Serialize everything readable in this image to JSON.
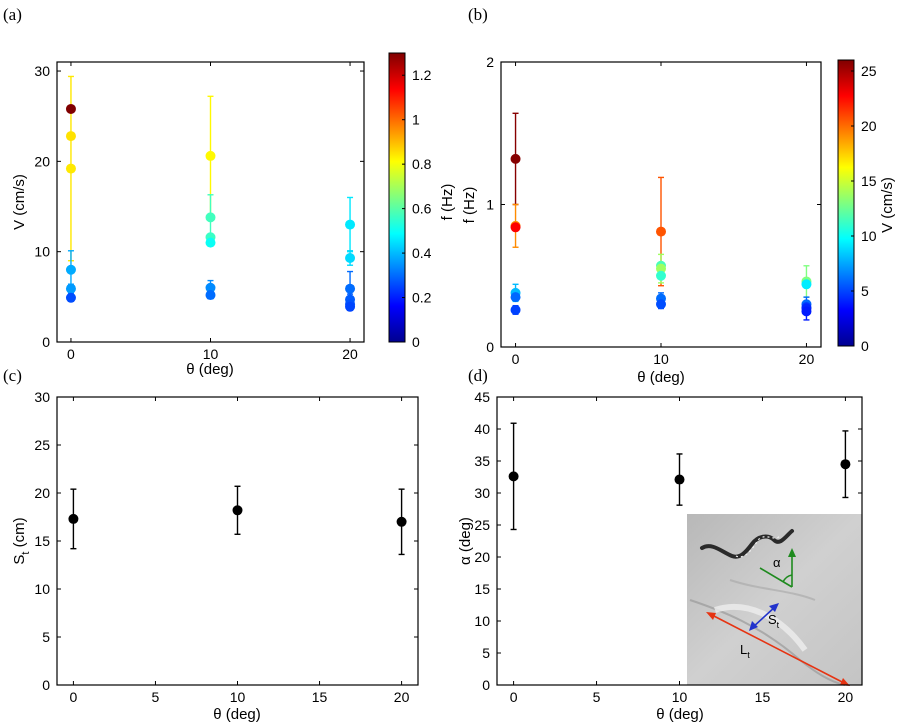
{
  "chart_data": [
    {
      "id": "a",
      "panel_label": "(a)",
      "type": "scatter",
      "xlabel": "θ (deg)",
      "ylabel": "V (cm/s)",
      "xlim": [
        -1,
        21
      ],
      "ylim": [
        0,
        31
      ],
      "xticks": [
        0,
        10,
        20
      ],
      "yticks": [
        0,
        10,
        20,
        30
      ],
      "colorbar": {
        "label": "f (Hz)",
        "range": [
          0,
          1.3
        ],
        "ticks": [
          0,
          0.2,
          0.4,
          0.6,
          0.8,
          1,
          1.2
        ],
        "tick_labels": [
          "0",
          "0.2",
          "0.4",
          "0.6",
          "0.8",
          "1",
          "1.2"
        ]
      },
      "points": [
        {
          "x": 0,
          "y": 25.8,
          "c": 1.33,
          "err": 0
        },
        {
          "x": 0,
          "y": 22.8,
          "c": 0.85,
          "err": 0
        },
        {
          "x": 0,
          "y": 19.2,
          "c": 0.84,
          "err": 10.2
        },
        {
          "x": 0,
          "y": 8.0,
          "c": 0.38,
          "err": 2.1
        },
        {
          "x": 0,
          "y": 5.9,
          "c": 0.36,
          "err": 0.5
        },
        {
          "x": 0,
          "y": 4.9,
          "c": 0.26,
          "err": 0.4
        },
        {
          "x": 10,
          "y": 20.6,
          "c": 0.82,
          "err": 6.6
        },
        {
          "x": 10,
          "y": 13.8,
          "c": 0.57,
          "err": 2.5
        },
        {
          "x": 10,
          "y": 11.6,
          "c": 0.56,
          "err": 0
        },
        {
          "x": 10,
          "y": 11.0,
          "c": 0.5,
          "err": 0
        },
        {
          "x": 10,
          "y": 6.0,
          "c": 0.34,
          "err": 0.8
        },
        {
          "x": 10,
          "y": 5.2,
          "c": 0.3,
          "err": 0.4
        },
        {
          "x": 20,
          "y": 13.0,
          "c": 0.46,
          "err": 3.0
        },
        {
          "x": 20,
          "y": 9.3,
          "c": 0.44,
          "err": 0.8
        },
        {
          "x": 20,
          "y": 5.9,
          "c": 0.3,
          "err": 1.9
        },
        {
          "x": 20,
          "y": 4.7,
          "c": 0.28,
          "err": 0.6
        },
        {
          "x": 20,
          "y": 4.2,
          "c": 0.27,
          "err": 0.5
        },
        {
          "x": 20,
          "y": 3.9,
          "c": 0.25,
          "err": 0.4
        }
      ]
    },
    {
      "id": "b",
      "panel_label": "(b)",
      "type": "scatter",
      "xlabel": "θ (deg)",
      "ylabel": "f (Hz)",
      "xlim": [
        -1,
        21
      ],
      "ylim": [
        0,
        2
      ],
      "xticks": [
        0,
        10,
        20
      ],
      "yticks": [
        0,
        1,
        2
      ],
      "colorbar": {
        "label": "V (cm/s)",
        "range": [
          0,
          26
        ],
        "ticks": [
          0,
          5,
          10,
          15,
          20,
          25
        ],
        "tick_labels": [
          "0",
          "5",
          "10",
          "15",
          "20",
          "25"
        ]
      },
      "points": [
        {
          "x": 0,
          "y": 1.32,
          "c": 25.8,
          "err": 0.32
        },
        {
          "x": 0,
          "y": 0.85,
          "c": 19.2,
          "err": 0.15
        },
        {
          "x": 0,
          "y": 0.84,
          "c": 22.8,
          "err": 0
        },
        {
          "x": 0,
          "y": 0.38,
          "c": 8.0,
          "err": 0.06
        },
        {
          "x": 0,
          "y": 0.35,
          "c": 5.9,
          "err": 0
        },
        {
          "x": 0,
          "y": 0.26,
          "c": 4.9,
          "err": 0.03
        },
        {
          "x": 10,
          "y": 0.81,
          "c": 20.6,
          "err": 0.38
        },
        {
          "x": 10,
          "y": 0.57,
          "c": 11.6,
          "err": 0
        },
        {
          "x": 10,
          "y": 0.55,
          "c": 13.8,
          "err": 0.1
        },
        {
          "x": 10,
          "y": 0.5,
          "c": 11.0,
          "err": 0
        },
        {
          "x": 10,
          "y": 0.34,
          "c": 6.0,
          "err": 0.04
        },
        {
          "x": 10,
          "y": 0.3,
          "c": 5.2,
          "err": 0.03
        },
        {
          "x": 20,
          "y": 0.46,
          "c": 13.0,
          "err": 0.11
        },
        {
          "x": 20,
          "y": 0.44,
          "c": 9.3,
          "err": 0
        },
        {
          "x": 20,
          "y": 0.3,
          "c": 5.9,
          "err": 0.05
        },
        {
          "x": 20,
          "y": 0.28,
          "c": 4.7,
          "err": 0.04
        },
        {
          "x": 20,
          "y": 0.27,
          "c": 4.2,
          "err": 0
        },
        {
          "x": 20,
          "y": 0.25,
          "c": 3.9,
          "err": 0.06
        }
      ]
    },
    {
      "id": "c",
      "panel_label": "(c)",
      "type": "scatter",
      "xlabel": "θ (deg)",
      "ylabel": "S",
      "ylabel_subscript": "t",
      "ylabel_unit": " (cm)",
      "xlim": [
        -1,
        21
      ],
      "ylim": [
        0,
        30
      ],
      "xticks": [
        0,
        5,
        10,
        15,
        20
      ],
      "yticks": [
        0,
        5,
        10,
        15,
        20,
        25,
        30
      ],
      "points": [
        {
          "x": 0,
          "y": 17.3,
          "err": 3.1
        },
        {
          "x": 10,
          "y": 18.2,
          "err": 2.5
        },
        {
          "x": 20,
          "y": 17.0,
          "err": 3.4
        }
      ]
    },
    {
      "id": "d",
      "panel_label": "(d)",
      "type": "scatter",
      "xlabel": "θ (deg)",
      "ylabel": "α (deg)",
      "xlim": [
        -1,
        21
      ],
      "ylim": [
        0,
        45
      ],
      "xticks": [
        0,
        5,
        10,
        15,
        20
      ],
      "yticks": [
        0,
        5,
        10,
        15,
        20,
        25,
        30,
        35,
        40,
        45
      ],
      "points": [
        {
          "x": 0,
          "y": 32.6,
          "err": 8.3
        },
        {
          "x": 10,
          "y": 32.1,
          "err": 4.0
        },
        {
          "x": 20,
          "y": 34.5,
          "err": 5.2
        }
      ],
      "inset": {
        "alpha_label": "α",
        "alpha_color": "#1e8a1e",
        "s_label": "S",
        "s_sub": "t",
        "s_color": "#2233cc",
        "l_label": "L",
        "l_sub": "t",
        "l_color": "#e63312"
      }
    }
  ]
}
